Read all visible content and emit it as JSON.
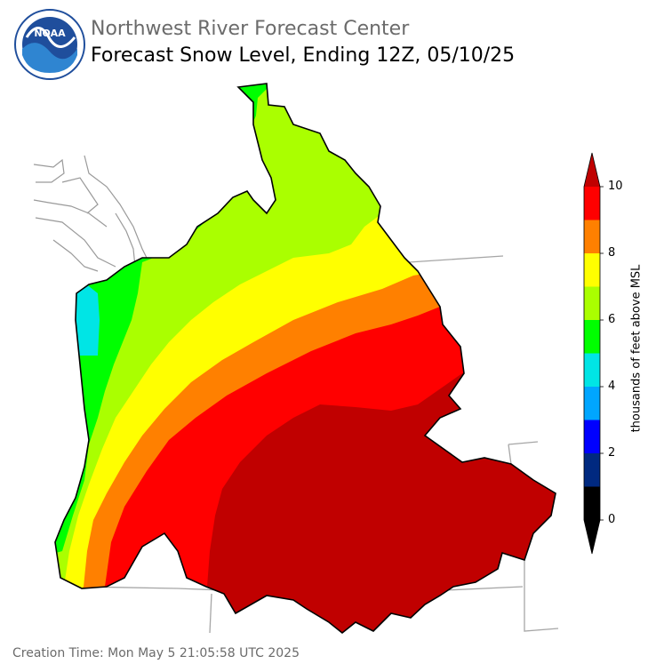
{
  "header": {
    "agency": "Northwest River Forecast Center",
    "product": "Forecast Snow Level, Ending 12Z, 05/10/25"
  },
  "logo": {
    "text": "NOAA",
    "ring_text": "NATIONAL OCEANIC AND ATMOSPHERIC ADMINISTRATION · U.S. DEPARTMENT OF COMMERCE",
    "colors": {
      "ring": "#ffffff",
      "inner": "#1f4e9c",
      "wave": "#2f85d1"
    }
  },
  "footer": {
    "creation": "Creation Time: Mon May 5 21:05:58 UTC 2025"
  },
  "colorbar": {
    "title": "thousands of feet above MSL",
    "ticks": [
      "0",
      "2",
      "4",
      "6",
      "8",
      "10"
    ],
    "bands": [
      {
        "from": 0,
        "to": 1,
        "color": "#000000"
      },
      {
        "from": 1,
        "to": 2,
        "color": "#002980"
      },
      {
        "from": 2,
        "to": 3,
        "color": "#0000ff"
      },
      {
        "from": 3,
        "to": 4,
        "color": "#00a6ff"
      },
      {
        "from": 4,
        "to": 5,
        "color": "#00e5e5"
      },
      {
        "from": 5,
        "to": 6,
        "color": "#00ff00"
      },
      {
        "from": 6,
        "to": 7,
        "color": "#aaff00"
      },
      {
        "from": 7,
        "to": 8,
        "color": "#ffff00"
      },
      {
        "from": 8,
        "to": 9,
        "color": "#ff8000"
      },
      {
        "from": 9,
        "to": 10,
        "color": "#ff0000"
      }
    ],
    "under_color": "#000000",
    "over_color": "#c00000"
  },
  "map": {
    "region": "Pacific Northwest (Columbia River basin)",
    "zones": [
      {
        "level": "4-5",
        "color": "#00e5e5"
      },
      {
        "level": "5-6",
        "color": "#00ff00"
      },
      {
        "level": "6-7",
        "color": "#aaff00"
      },
      {
        "level": "7-8",
        "color": "#ffff00"
      },
      {
        "level": "8-9",
        "color": "#ff8000"
      },
      {
        "level": "9-10",
        "color": "#ff0000"
      },
      {
        "level": ">10",
        "color": "#c00000"
      }
    ],
    "border_color": "#a6a6a6",
    "coast_color": "#8c8c8c"
  }
}
